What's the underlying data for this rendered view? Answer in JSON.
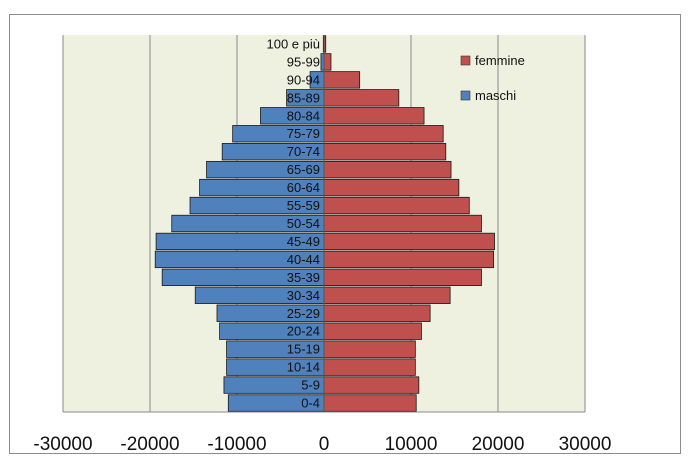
{
  "chart_data": {
    "type": "bar",
    "orientation": "horizontal",
    "categories": [
      "0-4",
      "5-9",
      "10-14",
      "15-19",
      "20-24",
      "25-29",
      "30-34",
      "35-39",
      "40-44",
      "45-49",
      "50-54",
      "55-59",
      "60-64",
      "65-69",
      "70-74",
      "75-79",
      "80-84",
      "85-89",
      "90-94",
      "95-99",
      "100 e più"
    ],
    "series": [
      {
        "name": "maschi",
        "color": "#4f81bd",
        "values": [
          -11000,
          -11500,
          -11200,
          -11200,
          -12000,
          -12300,
          -14800,
          -18600,
          -19400,
          -19300,
          -17500,
          -15400,
          -14300,
          -13500,
          -11700,
          -10500,
          -7300,
          -4300,
          -1600,
          -350,
          -80
        ]
      },
      {
        "name": "femmine",
        "color": "#c0504d",
        "values": [
          10600,
          10900,
          10500,
          10500,
          11200,
          12200,
          14500,
          18100,
          19500,
          19600,
          18100,
          16700,
          15500,
          14600,
          14000,
          13700,
          11500,
          8600,
          4100,
          800,
          200
        ]
      }
    ],
    "xlim": [
      -30000,
      30000
    ],
    "xticks": [
      "-30000",
      "-20000",
      "-10000",
      "0",
      "10000",
      "20000",
      "30000"
    ],
    "legend_position": "top-right",
    "grid": true,
    "plot_background": "#eef1df"
  }
}
